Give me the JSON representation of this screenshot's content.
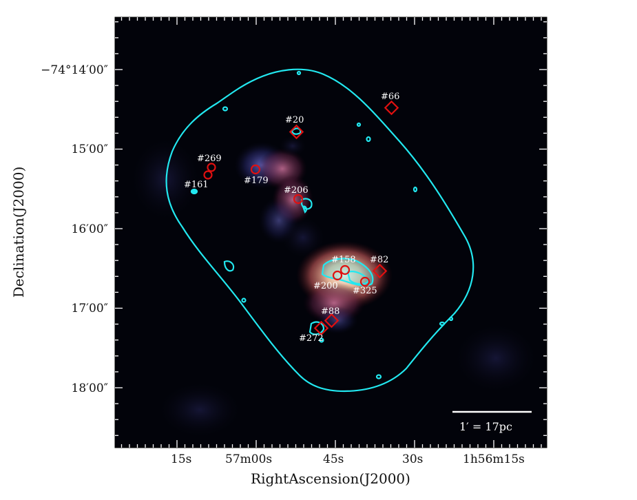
{
  "axes": {
    "xlabel": "RightAscension(J2000)",
    "ylabel": "Declination(J2000)",
    "x_ticks": [
      "15s",
      "57m00s",
      "45s",
      "30s",
      "1h56m15s"
    ],
    "y_ticks": [
      "−74°14′00″",
      "15′00″",
      "16′00″",
      "17′00″",
      "18′00″"
    ]
  },
  "scale_bar": {
    "label": "1′ = 17pc"
  },
  "sources": [
    {
      "id": "#66",
      "marker": "diamond"
    },
    {
      "id": "#20",
      "marker": "diamond"
    },
    {
      "id": "#269",
      "marker": "circle"
    },
    {
      "id": "#179",
      "marker": "circle"
    },
    {
      "id": "#161",
      "marker": "circle"
    },
    {
      "id": "#206",
      "marker": "circle"
    },
    {
      "id": "#158",
      "marker": "circle"
    },
    {
      "id": "#82",
      "marker": "diamond"
    },
    {
      "id": "#200",
      "marker": "circle"
    },
    {
      "id": "#325",
      "marker": "circle"
    },
    {
      "id": "#88",
      "marker": "diamond"
    },
    {
      "id": "#272",
      "marker": "circle"
    }
  ],
  "colors": {
    "contour": "#22e8f0",
    "marker": "#e01010",
    "background": "#02030a"
  }
}
